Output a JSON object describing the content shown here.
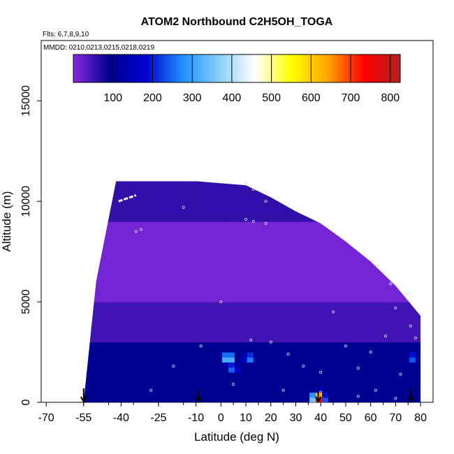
{
  "chart_data": {
    "type": "heatmap",
    "title": "ATOM2 Northbound C2H5OH_TOGA",
    "flights_label": "Flts: 6,7,8,9,10",
    "dates_label": "MMDD: 0210,0213,0215,0218,0219",
    "xlabel": "Latitude (deg N)",
    "ylabel": "Altitude (m)",
    "xlim": [
      -72,
      85
    ],
    "ylim": [
      0,
      18000
    ],
    "x_ticks": [
      -70,
      -55,
      -40,
      -25,
      -10,
      0,
      10,
      20,
      30,
      40,
      50,
      60,
      70,
      80
    ],
    "y_ticks": [
      0,
      5000,
      10000,
      15000
    ],
    "colorbar": {
      "range": [
        0,
        825
      ],
      "ticks": [
        100,
        200,
        300,
        400,
        500,
        600,
        700,
        800
      ],
      "colors": [
        "#8a2be2",
        "#00008b",
        "#0000cd",
        "#1e90ff",
        "#87cefa",
        "#ffffff",
        "#ffff00",
        "#ffa500",
        "#ff0000",
        "#b22222"
      ]
    },
    "field_region": {
      "outline_lat": [
        -55,
        -53,
        -45,
        -35,
        -20,
        -10,
        0,
        10,
        20,
        30,
        40,
        50,
        60,
        70,
        80,
        80,
        70,
        60,
        50,
        40,
        30,
        20,
        10,
        0,
        -10,
        -20,
        -30,
        -40,
        -42,
        -50,
        -55
      ],
      "outline_alt": [
        0,
        0,
        0,
        0,
        0,
        0,
        0,
        0,
        0,
        0,
        0,
        0,
        0,
        0,
        0,
        4300,
        5800,
        7000,
        8000,
        8900,
        9500,
        10200,
        10800,
        10900,
        11000,
        11000,
        11000,
        11000,
        11000,
        6000,
        0
      ]
    },
    "field_bands": [
      {
        "alt": [
          0,
          3000
        ],
        "value": 100
      },
      {
        "alt": [
          3000,
          5000
        ],
        "value": 50
      },
      {
        "alt": [
          5000,
          9000
        ],
        "value": 15
      },
      {
        "alt": [
          9000,
          11000
        ],
        "value": 60
      }
    ],
    "hotspots": [
      {
        "lat": 3,
        "alt": 2200,
        "value": 420
      },
      {
        "lat": 11,
        "alt": 2200,
        "value": 300
      },
      {
        "lat": 5,
        "alt": 1700,
        "value": 280
      },
      {
        "lat": 39,
        "alt": 200,
        "value": 820
      },
      {
        "lat": 77,
        "alt": 2200,
        "value": 250
      }
    ],
    "sample_points": [
      {
        "lat": 10,
        "alt": 10900
      },
      {
        "lat": 13,
        "alt": 10600
      },
      {
        "lat": 18,
        "alt": 10000
      },
      {
        "lat": 10,
        "alt": 9100
      },
      {
        "lat": 13,
        "alt": 9000
      },
      {
        "lat": 18,
        "alt": 8900
      },
      {
        "lat": -34,
        "alt": 8500
      },
      {
        "lat": -32,
        "alt": 8600
      },
      {
        "lat": -15,
        "alt": 9700
      },
      {
        "lat": -8,
        "alt": 2800
      },
      {
        "lat": 0,
        "alt": 5000
      },
      {
        "lat": 12,
        "alt": 3100
      },
      {
        "lat": 20,
        "alt": 3000
      },
      {
        "lat": 27,
        "alt": 2400
      },
      {
        "lat": 33,
        "alt": 1800
      },
      {
        "lat": 40,
        "alt": 1500
      },
      {
        "lat": 45,
        "alt": 4500
      },
      {
        "lat": 50,
        "alt": 2800
      },
      {
        "lat": 55,
        "alt": 1700
      },
      {
        "lat": 60,
        "alt": 2500
      },
      {
        "lat": 63,
        "alt": 6800
      },
      {
        "lat": 66,
        "alt": 3300
      },
      {
        "lat": 70,
        "alt": 4700
      },
      {
        "lat": 72,
        "alt": 1400
      },
      {
        "lat": 76,
        "alt": 3800
      },
      {
        "lat": 78,
        "alt": 3200
      },
      {
        "lat": 40,
        "alt": 500
      },
      {
        "lat": 55,
        "alt": 300
      },
      {
        "lat": 62,
        "alt": 600
      },
      {
        "lat": 70,
        "alt": 200
      },
      {
        "lat": -28,
        "alt": 600
      },
      {
        "lat": 5,
        "alt": 900
      },
      {
        "lat": 25,
        "alt": 600
      },
      {
        "lat": -19,
        "alt": 1800
      },
      {
        "lat": 68,
        "alt": 5900
      },
      {
        "lat": 75,
        "alt": 5400
      }
    ],
    "flight_tracks": [
      {
        "lat": [
          -41,
          -34
        ],
        "alt": [
          10000,
          10300
        ]
      },
      {
        "lat": [
          67,
          70
        ],
        "alt": [
          6800,
          6600
        ]
      }
    ],
    "arrows_lat": [
      -55,
      -9,
      39,
      76
    ],
    "grid": false,
    "legend": "colorbar-top"
  }
}
